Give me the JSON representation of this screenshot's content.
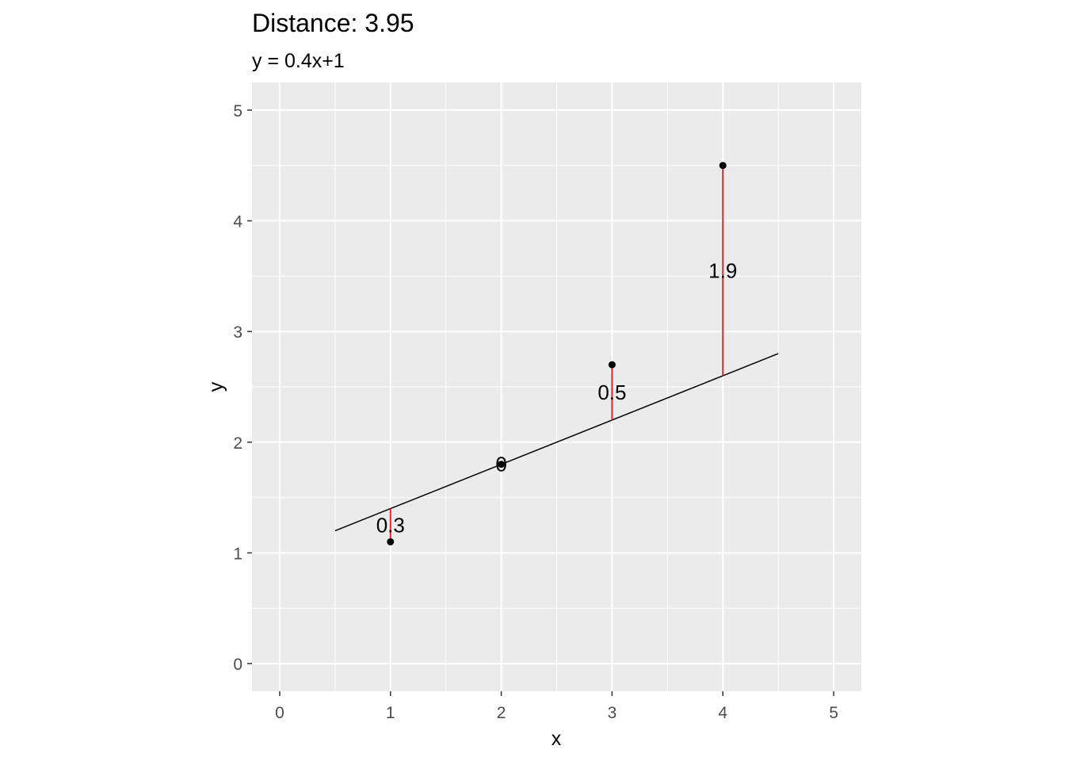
{
  "chart_data": {
    "type": "scatter",
    "title": "Distance: 3.95",
    "subtitle": "y = 0.4x+1",
    "xlabel": "x",
    "ylabel": "y",
    "xlim": [
      -0.25,
      5.25
    ],
    "ylim": [
      -0.25,
      5.25
    ],
    "xticks": [
      "0",
      "1",
      "2",
      "3",
      "4",
      "5"
    ],
    "yticks": [
      "0",
      "1",
      "2",
      "3",
      "4",
      "5"
    ],
    "grid": true,
    "fit_line": {
      "slope": 0.4,
      "intercept": 1,
      "x_range": [
        0.5,
        4.5
      ],
      "color": "#000000"
    },
    "points": [
      {
        "x": 1,
        "y": 1.1,
        "residual_label": "0.3"
      },
      {
        "x": 2,
        "y": 1.8,
        "residual_label": "0"
      },
      {
        "x": 3,
        "y": 2.7,
        "residual_label": "0.5"
      },
      {
        "x": 4,
        "y": 4.5,
        "residual_label": "1.9"
      }
    ],
    "colors": {
      "panel_background": "#ebebeb",
      "grid_major": "#ffffff",
      "residual_segment": "#e41a1c",
      "point": "#000000"
    }
  }
}
